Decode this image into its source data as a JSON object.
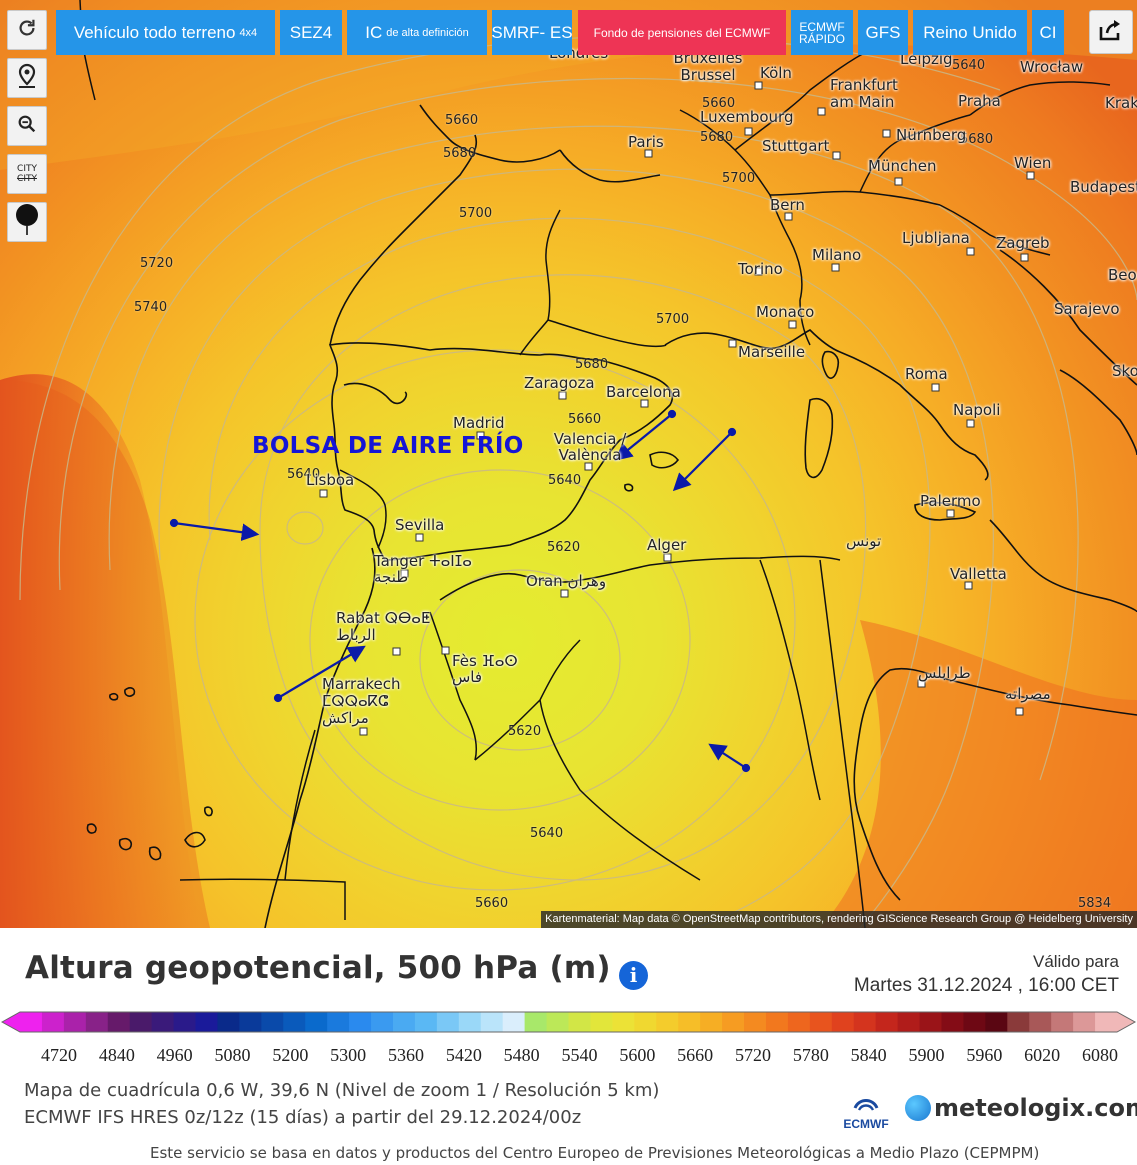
{
  "toolbar": {
    "refresh_icon": "refresh-icon",
    "location_icon": "map-pin-icon",
    "zoom_icon": "zoom-icon",
    "city_toggle_top": "CITY",
    "city_toggle_bottom": "CITY",
    "balloon_icon": "balloon-pin-icon"
  },
  "model_tabs": [
    {
      "label": "Vehículo todo terreno",
      "sub": "4x4"
    },
    {
      "label": "SEZ4"
    },
    {
      "label": "IC",
      "sub": "de alta definición"
    },
    {
      "label": "SMRF- ES"
    },
    {
      "label": "Fondo de pensiones del ECMWF",
      "active": true
    },
    {
      "line1": "ECMWF",
      "line2": "RÁPIDO"
    },
    {
      "label": "GFS"
    },
    {
      "label": "Reino Unido"
    },
    {
      "label": "CI"
    }
  ],
  "share_icon": "share-icon",
  "annotation": "BOLSA DE AIRE FRÍO",
  "cities": [
    "Londres",
    "Bruxelles Brussel",
    "Köln",
    "Frankfurt am Main",
    "Leipzig",
    "Wrocław",
    "Kraków",
    "Luxembourg",
    "Paris",
    "Stuttgart",
    "Nürnberg",
    "Praha",
    "München",
    "Wien",
    "Budapest",
    "Bern",
    "Ljubljana",
    "Zagreb",
    "Torino",
    "Milano",
    "Beograd",
    "Monaco",
    "Marseille",
    "Sarajevo",
    "Zaragoza",
    "Barcelona",
    "Roma",
    "Madrid",
    "Valencia / València",
    "Napoli",
    "Lisboa",
    "Sevilla",
    "Palermo",
    "تونس",
    "Alger",
    "Valletta",
    "Tanger ⵜⴰⵏⵊⴰ طنجة",
    "Oran وهران",
    "Rabat ⵕⴱⴰⵟ الرباط",
    "Fès ⴼⴰⵙ فاس",
    "Marrakech ⵎⵕⵕⴰⴽⵛ مراكش",
    "طرابلس",
    "مصراته",
    "Skopje"
  ],
  "contour_labels": [
    "5720",
    "5740",
    "5640",
    "5660",
    "5680",
    "5700",
    "5660",
    "5680",
    "5640",
    "5620",
    "5620",
    "5640",
    "5660",
    "5700",
    "5660",
    "5680",
    "5700",
    "5640",
    "5680",
    "5834"
  ],
  "attribution": "Kartenmaterial: Map data © OpenStreetMap contributors, rendering GIScience Research Group @ Heidelberg University",
  "legend": {
    "title": "Altura geopotencial, 500 hPa (m)",
    "valid_label": "Válido para",
    "valid_date": "Martes 31.12.2024 , 16:00 CET",
    "ticks": [
      "4720",
      "4840",
      "4960",
      "5080",
      "5200",
      "5300",
      "5360",
      "5420",
      "5480",
      "5540",
      "5600",
      "5660",
      "5720",
      "5780",
      "5840",
      "5900",
      "5960",
      "6020",
      "6080"
    ],
    "colors": [
      "#ee22ee",
      "#cc22cc",
      "#aa22aa",
      "#882288",
      "#661a6a",
      "#4a1a6a",
      "#3a1a7a",
      "#2a1a8a",
      "#1a1a9a",
      "#0a2a8a",
      "#0a3a9a",
      "#0a4aaa",
      "#0a5abb",
      "#0a6acc",
      "#1a7add",
      "#2a8aee",
      "#3a9af0",
      "#4aaaf2",
      "#5ab8f4",
      "#7ac8f6",
      "#9ad8f8",
      "#bae4fa",
      "#daeefc",
      "#a8e86a",
      "#bce858",
      "#d2e646",
      "#e2e63a",
      "#ece236",
      "#f0d830",
      "#f4cc2c",
      "#f6be28",
      "#f6ae24",
      "#f69c22",
      "#f48a20",
      "#f2781e",
      "#ee661e",
      "#e8541e",
      "#e0421e",
      "#d4341e",
      "#c4261c",
      "#b01c1a",
      "#9a1418",
      "#840c16",
      "#6e0814",
      "#5a0612",
      "#8a3a3a",
      "#a85858",
      "#c47878",
      "#dc9898",
      "#f0b8b8"
    ],
    "grid_line": "Mapa de cuadrícula 0,6 W, 39,6 N (Nivel de zoom 1 / Resolución 5 km)",
    "model_line": "ECMWF IFS HRES 0z/12z (15 días) a partir del 29.12.2024/00z",
    "source_note": "Este servicio se basa en datos y productos del Centro Europeo de Previsiones Meteorológicas a Medio Plazo (CEPMPM)",
    "ecmwf_logo_text": "ECMWF",
    "brand": "meteologix.com"
  }
}
